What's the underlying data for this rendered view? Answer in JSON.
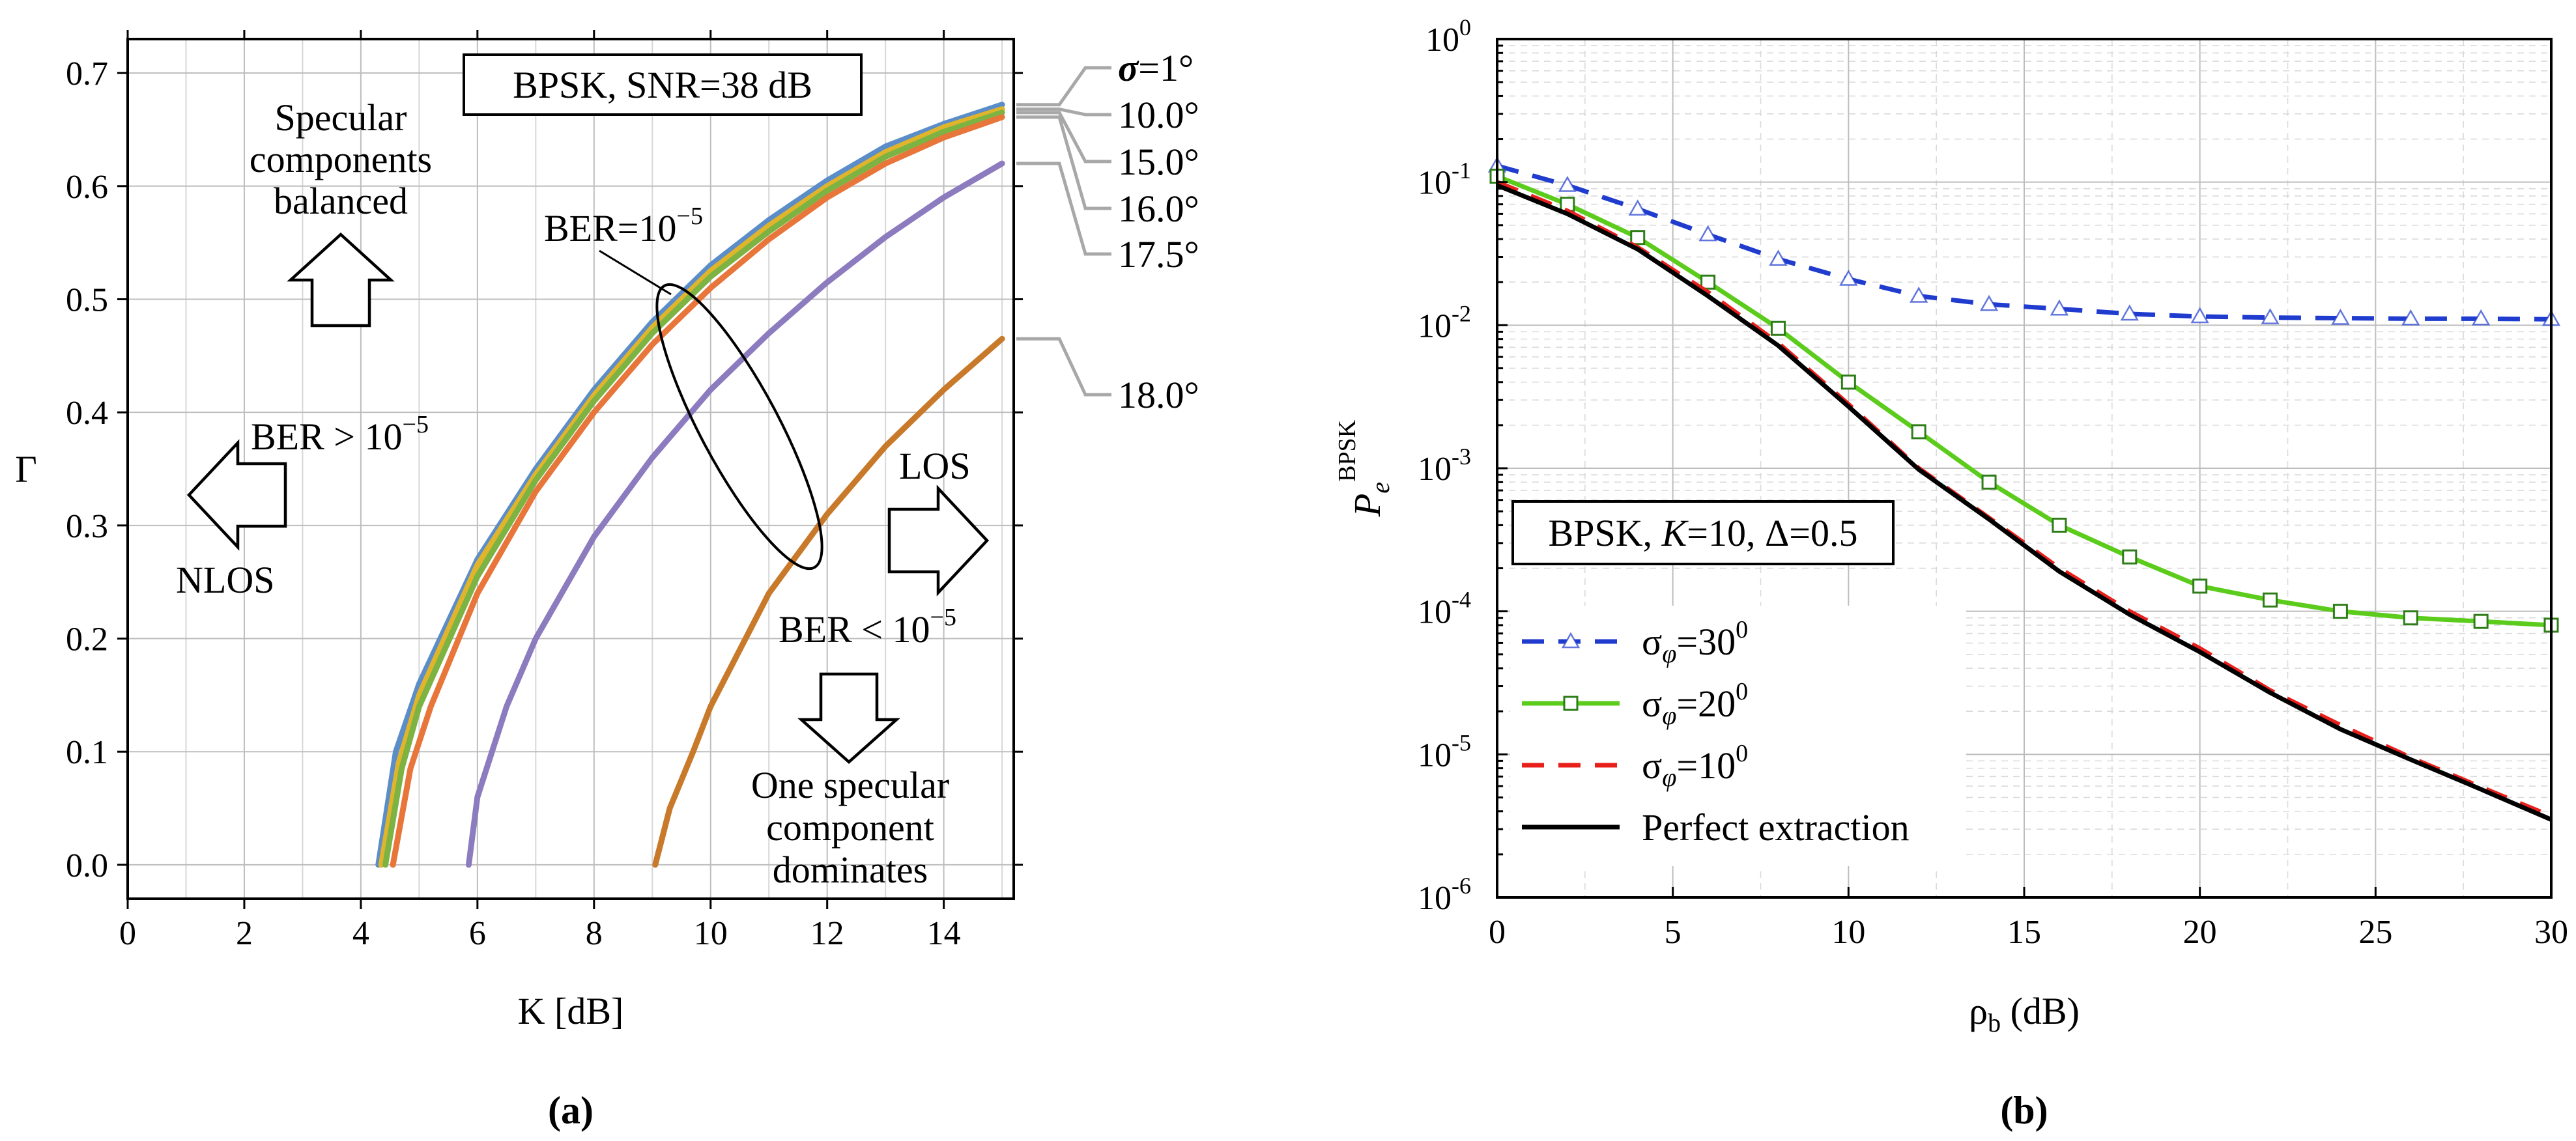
{
  "chart_data": [
    {
      "id": "a",
      "type": "line",
      "panel_label": "(a)",
      "xlabel": "K [dB]",
      "ylabel": "Γ",
      "xlim": [
        0,
        15.2
      ],
      "ylim": [
        -0.03,
        0.73
      ],
      "x_ticks": [
        0,
        2,
        4,
        6,
        8,
        10,
        12,
        14
      ],
      "y_ticks": [
        0.0,
        0.1,
        0.2,
        0.3,
        0.4,
        0.5,
        0.6,
        0.7
      ],
      "grid": true,
      "annotations": {
        "box_label": "BPSK, SNR=38 dB",
        "ellipse_label_base": "BER=10",
        "ellipse_label_exp": "−5",
        "left_region_base": "BER > 10",
        "left_region_exp": "−5",
        "right_region_base": "BER < 10",
        "right_region_exp": "−5",
        "nlos": "NLOS",
        "los": "LOS",
        "top_line1": "Specular",
        "top_line2": "components",
        "top_line3": "balanced",
        "bottom_line1": "One specular",
        "bottom_line2": "component",
        "bottom_line3": "dominates"
      },
      "sigma_symbol": "σ",
      "series": [
        {
          "name": "=1°",
          "color": "#5b8dc9",
          "x_start": 4.3,
          "x": [
            4.3,
            4.6,
            5,
            6,
            7,
            8,
            9,
            10,
            11,
            12,
            13,
            14,
            15
          ],
          "y": [
            0.0,
            0.1,
            0.16,
            0.27,
            0.35,
            0.42,
            0.48,
            0.53,
            0.57,
            0.605,
            0.635,
            0.655,
            0.672
          ]
        },
        {
          "name": "10.0°",
          "color": "#e0b52c",
          "x": [
            4.35,
            4.65,
            5,
            6,
            7,
            8,
            9,
            10,
            11,
            12,
            13,
            14,
            15
          ],
          "y": [
            0.0,
            0.09,
            0.15,
            0.265,
            0.345,
            0.415,
            0.475,
            0.525,
            0.565,
            0.6,
            0.63,
            0.652,
            0.668
          ]
        },
        {
          "name": "15.0°",
          "color": "#7cb342",
          "x": [
            4.42,
            4.7,
            5,
            6,
            7,
            8,
            9,
            10,
            11,
            12,
            13,
            14,
            15
          ],
          "y": [
            0.0,
            0.085,
            0.14,
            0.255,
            0.34,
            0.41,
            0.47,
            0.52,
            0.56,
            0.596,
            0.626,
            0.648,
            0.665
          ]
        },
        {
          "name": "16.0°",
          "color": "#e8753a",
          "x": [
            4.55,
            4.85,
            5.2,
            6,
            7,
            8,
            9,
            10,
            11,
            12,
            13,
            14,
            15
          ],
          "y": [
            0.0,
            0.085,
            0.14,
            0.24,
            0.33,
            0.4,
            0.46,
            0.51,
            0.553,
            0.59,
            0.62,
            0.643,
            0.661
          ]
        },
        {
          "name": "17.5°",
          "color": "#8c7cbf",
          "x": [
            5.85,
            6,
            6.5,
            7,
            8,
            9,
            10,
            11,
            12,
            13,
            14,
            15
          ],
          "y": [
            0.0,
            0.06,
            0.14,
            0.2,
            0.29,
            0.36,
            0.42,
            0.47,
            0.515,
            0.555,
            0.59,
            0.62
          ]
        },
        {
          "name": "18.0°",
          "color": "#c87a2a",
          "x": [
            9.05,
            9.3,
            9.7,
            10,
            11,
            12,
            13,
            14,
            15
          ],
          "y": [
            0.0,
            0.05,
            0.1,
            0.14,
            0.24,
            0.31,
            0.37,
            0.42,
            0.465
          ]
        }
      ]
    },
    {
      "id": "b",
      "type": "line",
      "panel_label": "(b)",
      "xlabel_sym": "ρ",
      "xlabel_sub": "b",
      "xlabel_rest": " (dB)",
      "ylabel_sym": "P",
      "ylabel_sub": "e",
      "ylabel_sup": "BPSK",
      "xlim": [
        0,
        30
      ],
      "ylim_log10": [
        -6,
        0
      ],
      "y_scale": "log",
      "x_ticks": [
        0,
        5,
        10,
        15,
        20,
        25,
        30
      ],
      "y_tick_exps": [
        "0",
        "-1",
        "-2",
        "-3",
        "-4",
        "-5",
        "-6"
      ],
      "y_tick_base": "10",
      "grid": true,
      "box_label_prefix": "BPSK, ",
      "box_label_k": "K",
      "box_label_rest": "=10, Δ=0.5",
      "legend_symbol": "σ",
      "legend_sub": "φ",
      "series": [
        {
          "name": "=30",
          "sup": "0",
          "color": "#1f3ccf",
          "dash": "dash",
          "marker": "triangle",
          "x": [
            0,
            2,
            4,
            6,
            8,
            10,
            12,
            14,
            16,
            18,
            20,
            22,
            24,
            26,
            28,
            30
          ],
          "y": [
            0.13,
            0.095,
            0.065,
            0.043,
            0.029,
            0.021,
            0.016,
            0.014,
            0.013,
            0.012,
            0.0115,
            0.0113,
            0.0112,
            0.0111,
            0.0111,
            0.011
          ]
        },
        {
          "name": "=20",
          "sup": "0",
          "color": "#5ccc1c",
          "dash": "solid",
          "marker": "square",
          "x": [
            0,
            2,
            4,
            6,
            8,
            10,
            12,
            14,
            16,
            18,
            20,
            22,
            24,
            26,
            28,
            30
          ],
          "y": [
            0.11,
            0.07,
            0.041,
            0.02,
            0.0095,
            0.004,
            0.0018,
            0.0008,
            0.0004,
            0.00024,
            0.00015,
            0.00012,
            0.0001,
            9e-05,
            8.5e-05,
            8e-05
          ]
        },
        {
          "name": "=10",
          "sup": "0",
          "color": "#e8201c",
          "dash": "dash",
          "marker": "none",
          "x": [
            0,
            2,
            4,
            6,
            8,
            10,
            12,
            14,
            16,
            18,
            20,
            22,
            24,
            26,
            28,
            30
          ],
          "y": [
            0.1,
            0.063,
            0.035,
            0.017,
            0.0075,
            0.0028,
            0.001,
            0.00045,
            0.0002,
            0.0001,
            5.5e-05,
            2.8e-05,
            1.6e-05,
            9.5e-06,
            5.9e-06,
            3.7e-06
          ]
        },
        {
          "name": "Perfect extraction",
          "sup": "",
          "color": "#000000",
          "dash": "solid",
          "marker": "none",
          "x": [
            0,
            2,
            4,
            6,
            8,
            10,
            12,
            14,
            16,
            18,
            20,
            22,
            24,
            26,
            28,
            30
          ],
          "y": [
            0.095,
            0.06,
            0.034,
            0.016,
            0.0072,
            0.0027,
            0.00098,
            0.00044,
            0.00019,
            9.5e-05,
            5.2e-05,
            2.7e-05,
            1.5e-05,
            9.2e-06,
            5.7e-06,
            3.5e-06
          ]
        }
      ]
    }
  ]
}
